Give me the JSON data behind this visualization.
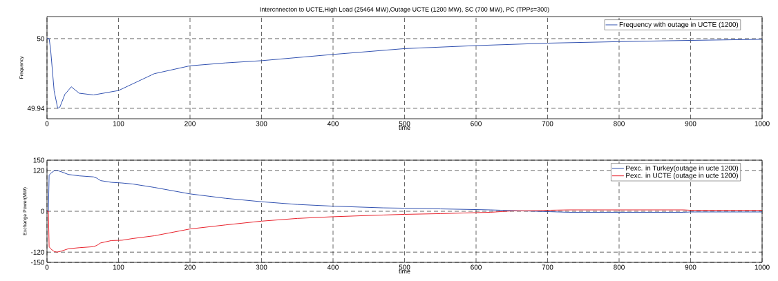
{
  "chart_data": [
    {
      "type": "line",
      "title": "Intercnnecton to UCTE,High Load (25464 MW),Outage UCTE (1200 MW), SC (700 MW), PC (TPPs=300)",
      "xlabel": "time",
      "ylabel": "Frequency",
      "xlim": [
        0,
        1000
      ],
      "xticks": [
        0,
        100,
        200,
        300,
        400,
        500,
        600,
        700,
        800,
        900,
        1000
      ],
      "ylim": [
        49.931,
        50.019
      ],
      "yticks": [
        49.94,
        50
      ],
      "grid": true,
      "legend": "top right",
      "line_style": "solid",
      "series": [
        {
          "name": "Frequency with outage in UCTE (1200)",
          "color": "#3050b0",
          "x": [
            0,
            3,
            5,
            10,
            15,
            18,
            25,
            34,
            45,
            65,
            100,
            150,
            200,
            250,
            300,
            400,
            500,
            600,
            700,
            800,
            900,
            1000
          ],
          "values": [
            50,
            50,
            49.991,
            49.955,
            49.94,
            49.941,
            49.952,
            49.9585,
            49.953,
            49.9515,
            49.9553,
            49.9698,
            49.9766,
            49.9791,
            49.981,
            49.9864,
            49.9914,
            49.994,
            49.9961,
            49.9974,
            49.9985,
            49.9994
          ]
        }
      ]
    },
    {
      "type": "line",
      "xlabel": "time",
      "ylabel": "Exchange Power(MW)",
      "xlim": [
        0,
        1000
      ],
      "xticks": [
        0,
        100,
        200,
        300,
        400,
        500,
        600,
        700,
        800,
        900,
        1000
      ],
      "ylim": [
        -150,
        150
      ],
      "yticks": [
        -150,
        -120,
        0,
        120,
        150
      ],
      "grid": true,
      "legend": "top right",
      "line_style": "solid",
      "series": [
        {
          "name": "Pexc. in Turkey(outage in ucte 1200)",
          "color": "#3050b0",
          "x": [
            0,
            2,
            3,
            5,
            10,
            14,
            20,
            30,
            45,
            65,
            70,
            75,
            90,
            105,
            120,
            150,
            200,
            250,
            300,
            350,
            400,
            470,
            500,
            550,
            600,
            620,
            650,
            700,
            730,
            890,
            900,
            1000
          ],
          "values": [
            0,
            0,
            106,
            111,
            119,
            120,
            116,
            108,
            104,
            101,
            97,
            90,
            85,
            83,
            80,
            70,
            51,
            38,
            28,
            20,
            15,
            10,
            9,
            7,
            5,
            4,
            null,
            -1,
            -3,
            -3,
            -2,
            -2
          ]
        },
        {
          "name": "Pexc. in UCTE (outage in ucte 1200)",
          "color": "#e8202a",
          "x": [
            0,
            2,
            3,
            5,
            10,
            14,
            20,
            30,
            45,
            65,
            70,
            75,
            90,
            105,
            120,
            150,
            200,
            250,
            300,
            350,
            400,
            470,
            500,
            550,
            600,
            620,
            650,
            690,
            700,
            730,
            890,
            900,
            1000
          ],
          "values": [
            0,
            0,
            -104,
            -110,
            -118,
            -120,
            -117,
            -110,
            -107,
            -104,
            -100,
            -93,
            -86,
            -85,
            -80,
            -72,
            -52,
            -40,
            -29,
            -21,
            -16,
            -11,
            -9,
            -7,
            -4,
            -3,
            1,
            2,
            3,
            4,
            4,
            3,
            3
          ]
        }
      ]
    }
  ]
}
